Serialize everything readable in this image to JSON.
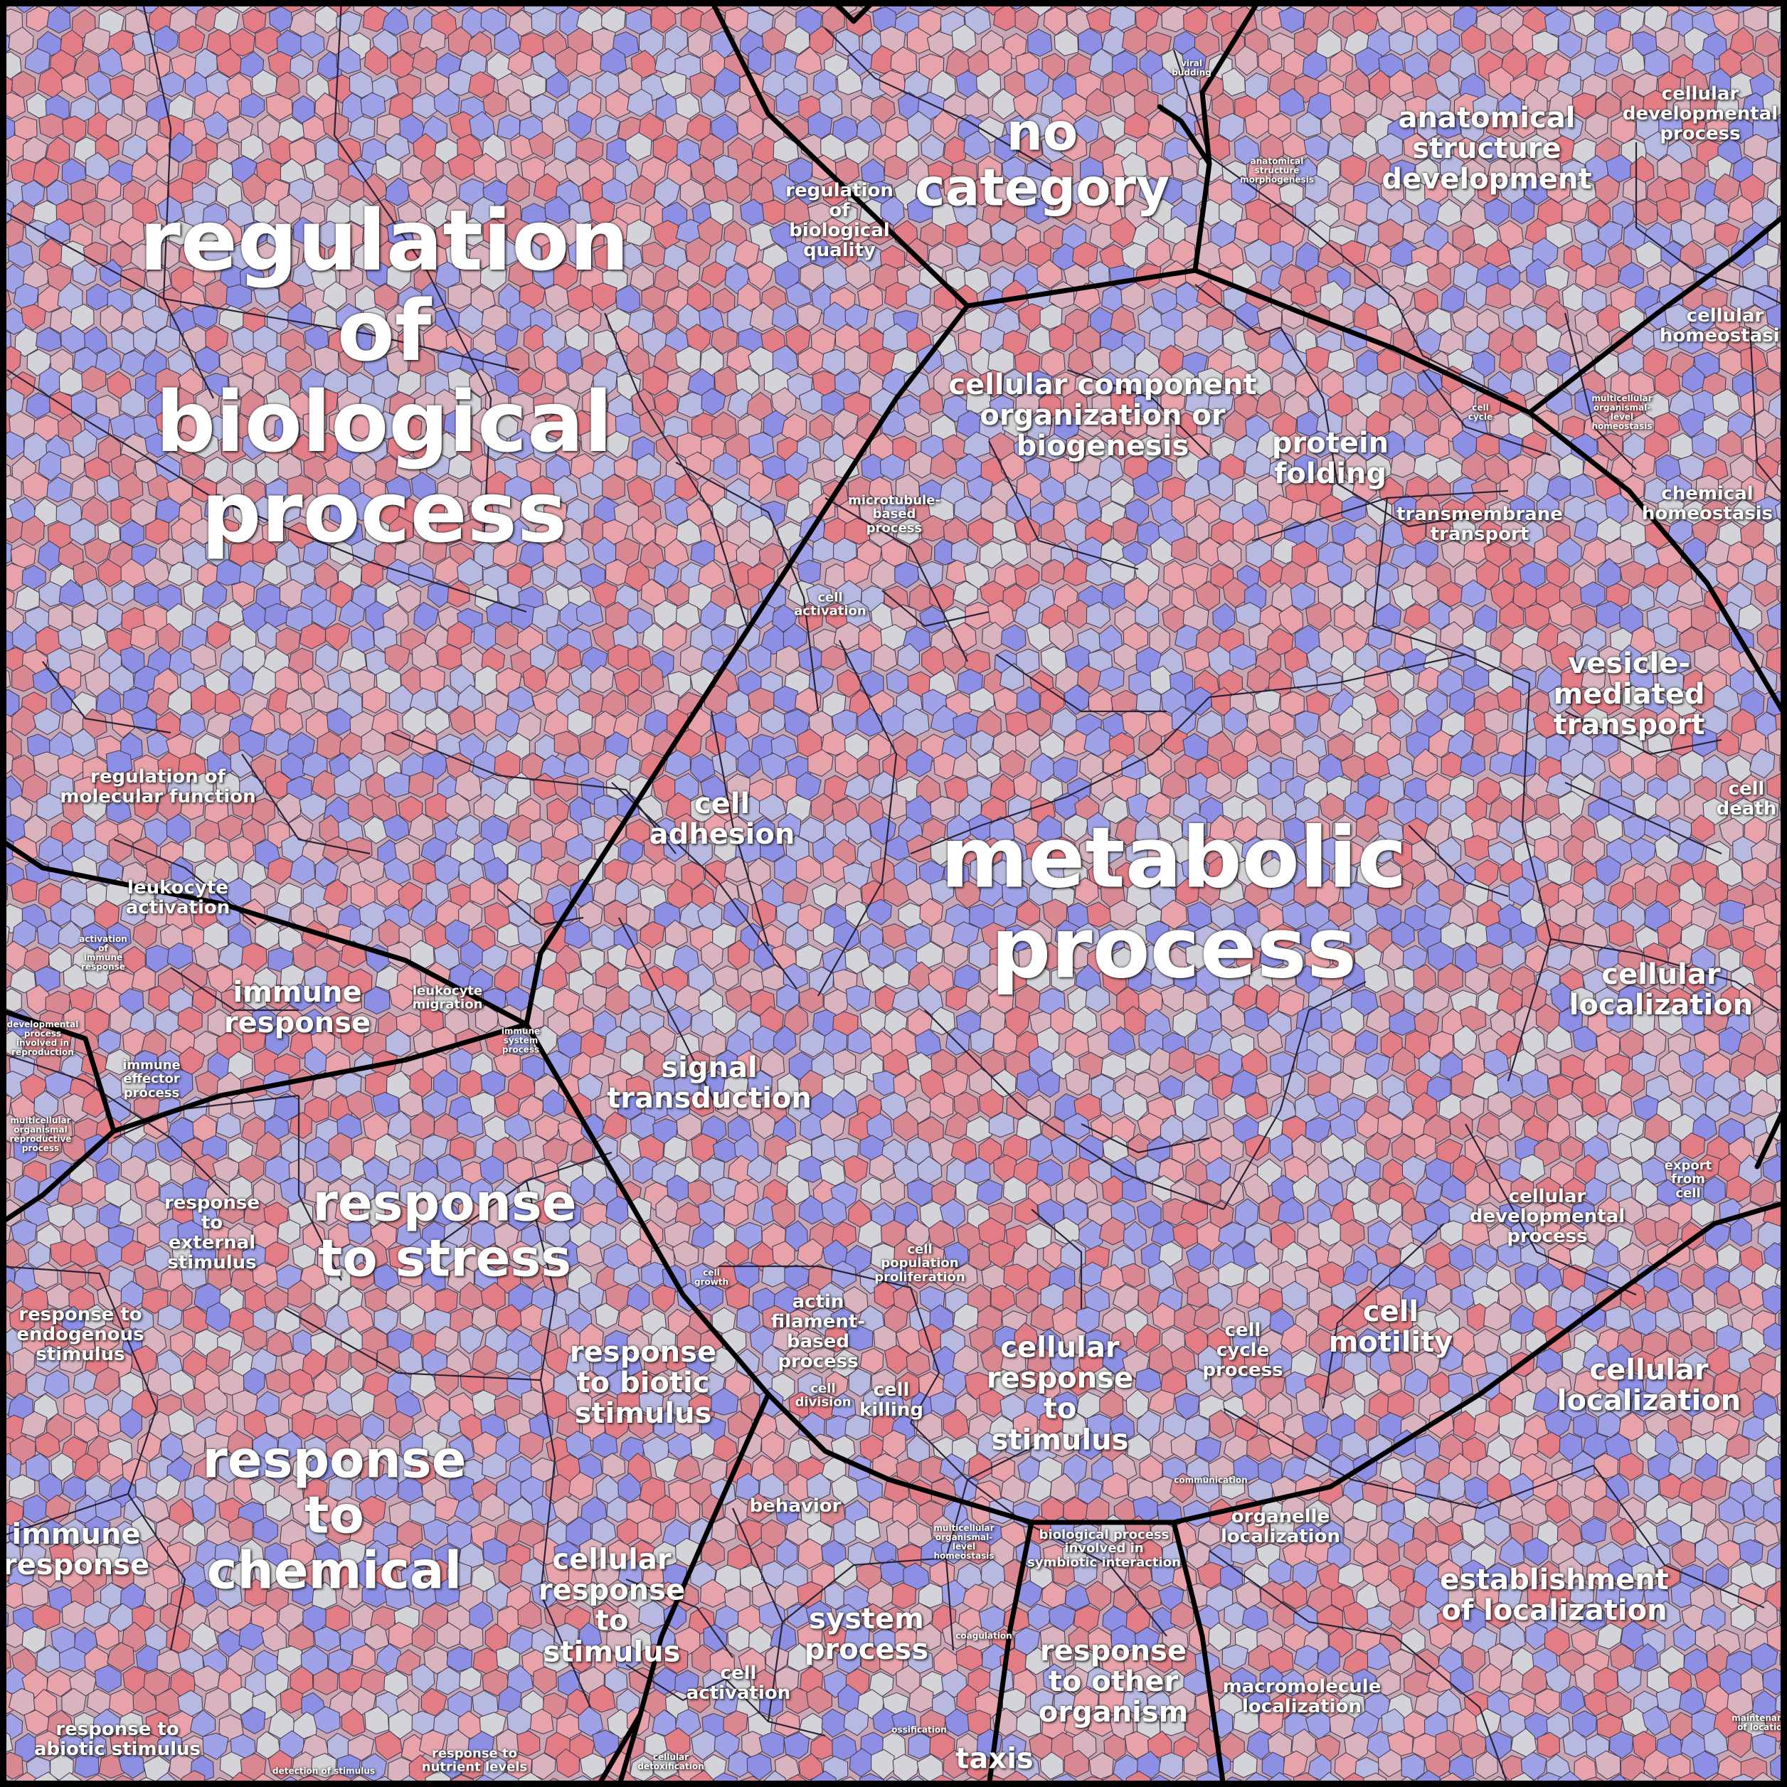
{
  "colors": {
    "cell_palette": [
      "#e27d86",
      "#e8a3aa",
      "#d9b3bd",
      "#d4d4d8",
      "#b7b9e0",
      "#9fa2e6",
      "#8c8fe4",
      "#d98891"
    ],
    "fine_border": "#3c3448",
    "major_border": "#000000",
    "label_text": "#ffffff"
  },
  "labels": [
    {
      "text": "regulation\nof\nbiological\nprocess",
      "size": "xl"
    },
    {
      "text": "metabolic\nprocess",
      "size": "xl"
    },
    {
      "text": "no\ncategory",
      "size": "l"
    },
    {
      "text": "response\nto\nchemical",
      "size": "l"
    },
    {
      "text": "response\nto stress",
      "size": "l"
    },
    {
      "text": "anatomical\nstructure\ndevelopment",
      "size": "m"
    },
    {
      "text": "cellular\ndevelopmental\nprocess",
      "size": "s"
    },
    {
      "text": "regulation\nof\nbiological\nquality",
      "size": "s"
    },
    {
      "text": "cellular component\norganization or\nbiogenesis",
      "size": "m"
    },
    {
      "text": "protein\nfolding",
      "size": "m"
    },
    {
      "text": "transmembrane\ntransport",
      "size": "s"
    },
    {
      "text": "cellular\nhomeostasis",
      "size": "s"
    },
    {
      "text": "chemical\nhomeostasis",
      "size": "s"
    },
    {
      "text": "vesicle-\nmediated\ntransport",
      "size": "m"
    },
    {
      "text": "cell\ndeath",
      "size": "s"
    },
    {
      "text": "cellular\nlocalization",
      "size": "m"
    },
    {
      "text": "export\nfrom\ncell",
      "size": "xs"
    },
    {
      "text": "cellular\ndevelopmental\nprocess",
      "size": "s"
    },
    {
      "text": "cell\nmotility",
      "size": "m"
    },
    {
      "text": "cellular\nlocalization",
      "size": "m"
    },
    {
      "text": "establishment\nof localization",
      "size": "m"
    },
    {
      "text": "cell\ncycle\nprocess",
      "size": "s"
    },
    {
      "text": "organelle\nlocalization",
      "size": "s"
    },
    {
      "text": "macromolecule\nlocalization",
      "size": "s"
    },
    {
      "text": "cellular\nresponse\nto\nstimulus",
      "size": "m"
    },
    {
      "text": "cell\npopulation\nproliferation",
      "size": "xs"
    },
    {
      "text": "actin\nfilament-\nbased\nprocess",
      "size": "s"
    },
    {
      "text": "cell\ndivision",
      "size": "xs"
    },
    {
      "text": "cell\nkilling",
      "size": "s"
    },
    {
      "text": "behavior",
      "size": "s"
    },
    {
      "text": "multicellular\norganismal-\nlevel\nhomeostasis",
      "size": "xxs"
    },
    {
      "text": "biological process\ninvolved in\nsymbiotic interaction",
      "size": "xs"
    },
    {
      "text": "system\nprocess",
      "size": "m"
    },
    {
      "text": "coagulation",
      "size": "xxs"
    },
    {
      "text": "response\nto other\norganism",
      "size": "m"
    },
    {
      "text": "cell\nactivation",
      "size": "s"
    },
    {
      "text": "taxis",
      "size": "m"
    },
    {
      "text": "ossification",
      "size": "xxs"
    },
    {
      "text": "cellular\ndetoxification",
      "size": "xxs"
    },
    {
      "text": "cellular\nresponse\nto\nstimulus",
      "size": "m"
    },
    {
      "text": "response\nto biotic\nstimulus",
      "size": "m"
    },
    {
      "text": "signal\ntransduction",
      "size": "m"
    },
    {
      "text": "cell\nadhesion",
      "size": "m"
    },
    {
      "text": "cell\nactivation",
      "size": "xs"
    },
    {
      "text": "microtubule-\nbased\nprocess",
      "size": "xs"
    },
    {
      "text": "regulation of\nmolecular function",
      "size": "s"
    },
    {
      "text": "leukocyte\nactivation",
      "size": "s"
    },
    {
      "text": "immune\nresponse",
      "size": "m"
    },
    {
      "text": "leukocyte\nmigration",
      "size": "xs"
    },
    {
      "text": "immune\neffector\nprocess",
      "size": "xs"
    },
    {
      "text": "activation\nof\nimmune\nresponse",
      "size": "xxs"
    },
    {
      "text": "developmental\nprocess\ninvolved in\nreproduction",
      "size": "xxs"
    },
    {
      "text": "multicellular\norganismal\nreproductive\nprocess",
      "size": "xxs"
    },
    {
      "text": "response\nto\nexternal\nstimulus",
      "size": "s"
    },
    {
      "text": "response to\nendogenous\nstimulus",
      "size": "s"
    },
    {
      "text": "immune\nresponse",
      "size": "m"
    },
    {
      "text": "response to\nabiotic stimulus",
      "size": "s"
    },
    {
      "text": "response to\nnutrient levels",
      "size": "xs"
    },
    {
      "text": "detection of stimulus",
      "size": "xxs"
    },
    {
      "text": "viral\nbudding",
      "size": "xxs"
    },
    {
      "text": "anatomical\nstructure\nmorphogenesis",
      "size": "xxs"
    },
    {
      "text": "cell\ncycle",
      "size": "xxs"
    },
    {
      "text": "cell\ngrowth",
      "size": "xxs"
    },
    {
      "text": "maintenance\nof location",
      "size": "xxs"
    },
    {
      "text": "communication",
      "size": "xxs"
    },
    {
      "text": "multicellular\norganismal-\nlevel\nhomeostasis",
      "size": "xxs"
    },
    {
      "text": "immune\nsystem\nprocess",
      "size": "xxs"
    }
  ]
}
